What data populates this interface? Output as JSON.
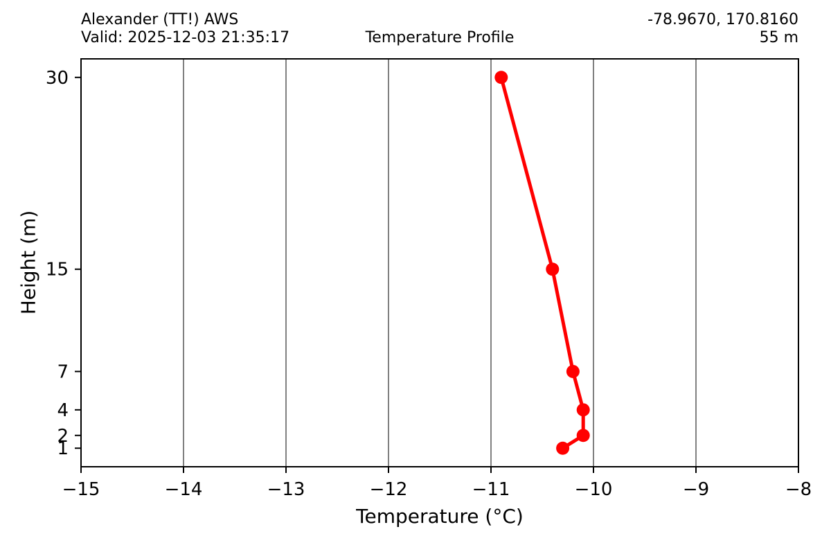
{
  "header": {
    "station": "Alexander (TT!) AWS",
    "valid": "Valid: 2025-12-03 21:35:17",
    "coords": "-78.9670, 170.8160",
    "elevation": "55 m"
  },
  "chart_data": {
    "type": "line",
    "title": "Temperature Profile",
    "xlabel": "Temperature (°C)",
    "ylabel": "Height (m)",
    "xlim": [
      -15,
      -8
    ],
    "ylim": [
      -0.45,
      31.45
    ],
    "xticks": [
      -15,
      -14,
      -13,
      -12,
      -11,
      -10,
      -9,
      -8
    ],
    "yticks": [
      30,
      15,
      7,
      4,
      2,
      1
    ],
    "grid": "vertical-only",
    "legend": "none",
    "colors": {
      "line": "#ff0000",
      "marker": "#ff0000",
      "grid": "#808080",
      "axis": "#000000",
      "background": "#ffffff"
    },
    "series": [
      {
        "name": "Temperature",
        "x_temperature_c": [
          -10.9,
          -10.4,
          -10.2,
          -10.1,
          -10.1,
          -10.3
        ],
        "y_height_m": [
          30,
          15,
          7,
          4,
          2,
          1
        ]
      }
    ]
  }
}
